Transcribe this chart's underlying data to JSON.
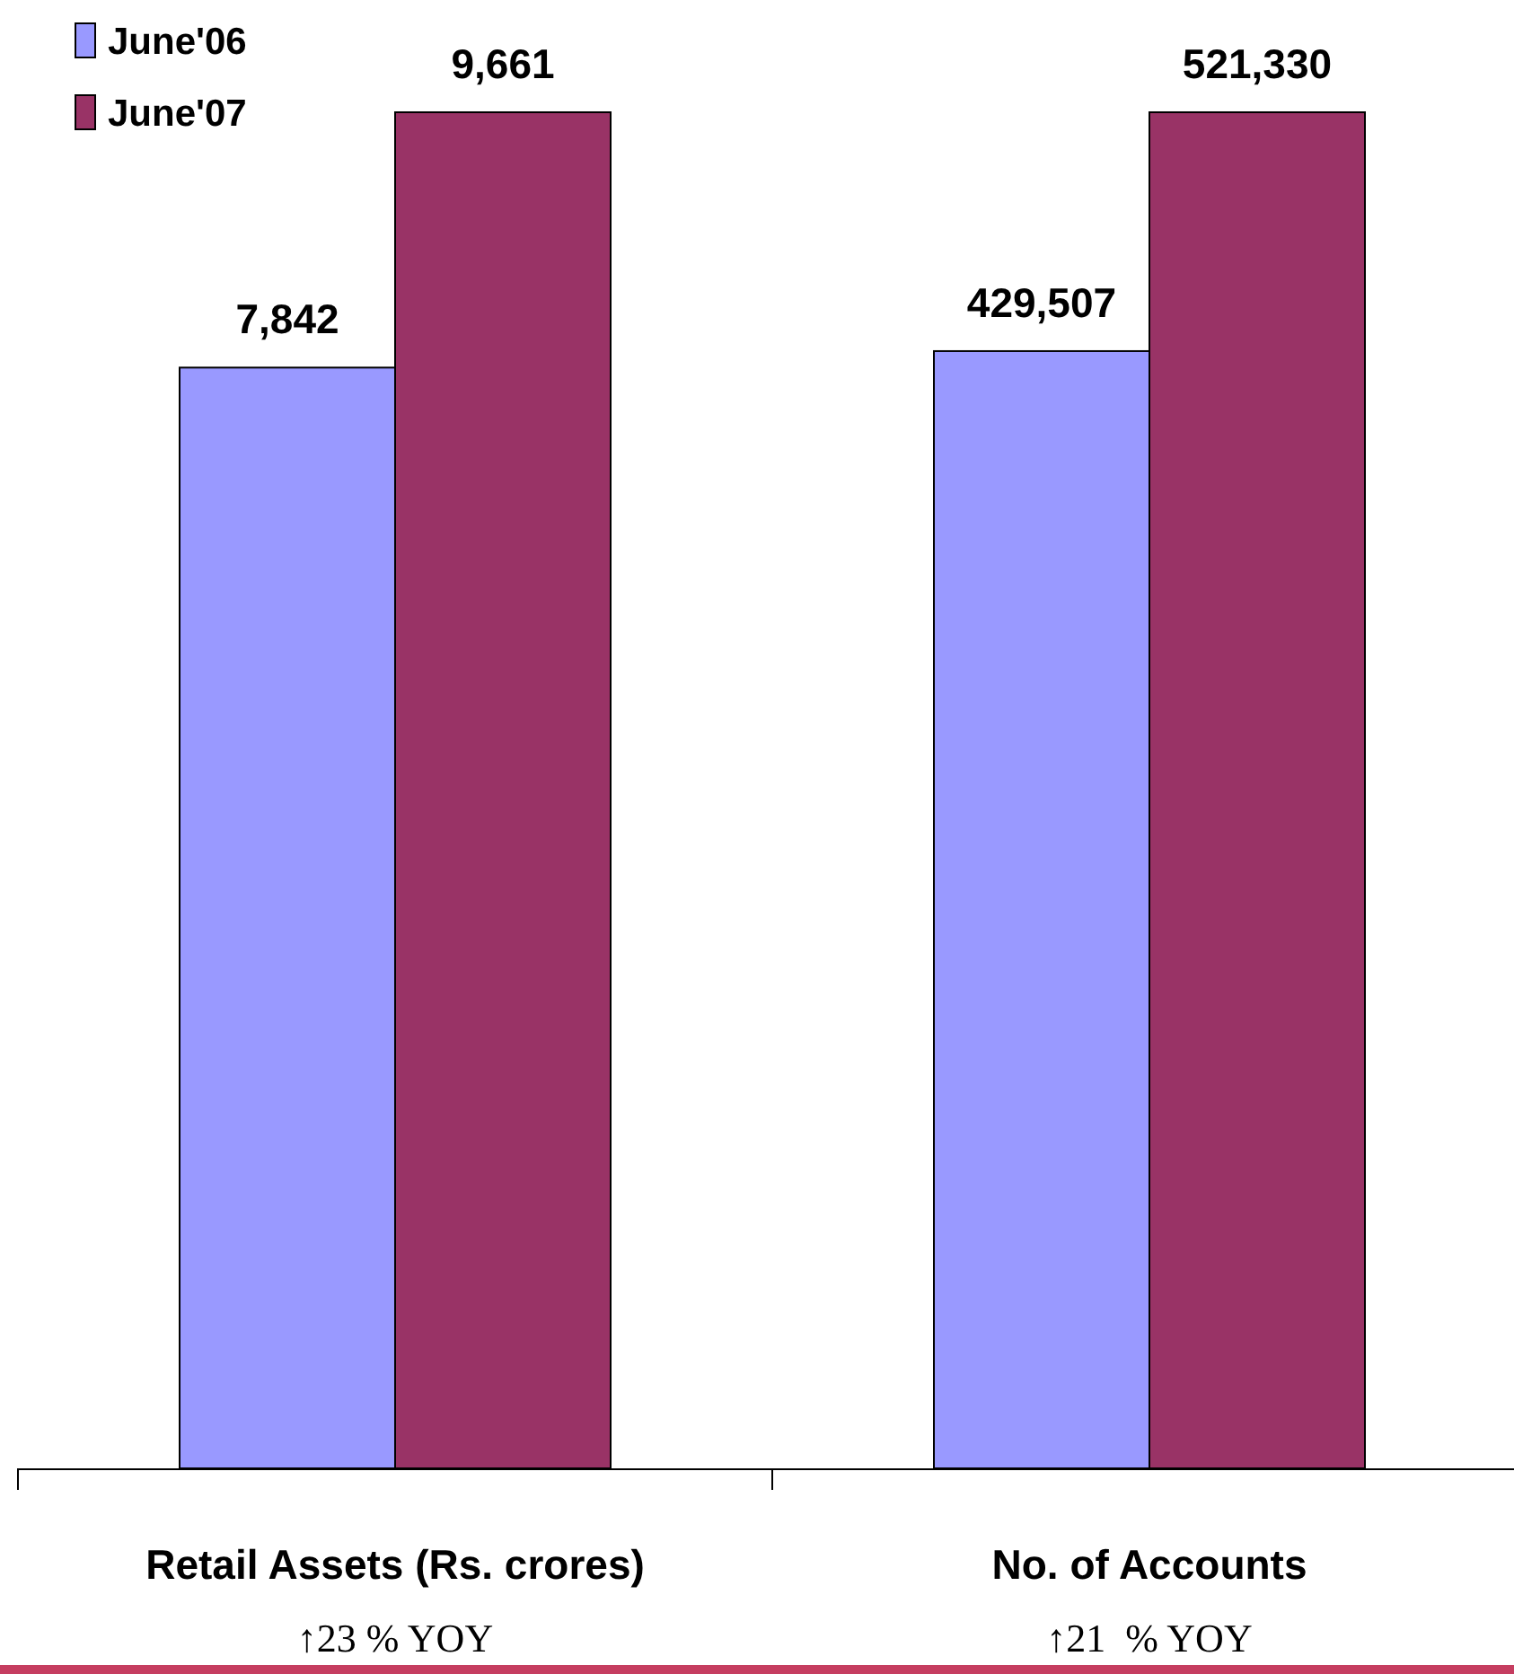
{
  "chart_data": {
    "type": "bar",
    "categories": [
      "Retail Assets (Rs. crores)",
      "No. of Accounts"
    ],
    "series": [
      {
        "name": "June'06",
        "color": "#9999ff",
        "values": [
          7842,
          null
        ],
        "value_labels": [
          "7,842",
          null
        ]
      },
      {
        "name": "June'07",
        "color": "#993366",
        "values": [
          9661,
          null
        ],
        "value_labels": [
          "9,661",
          null
        ]
      },
      {
        "color": "#9999ff",
        "values": [
          null,
          429507
        ],
        "value_labels": [
          null,
          "429,507"
        ],
        "axis": "y2"
      },
      {
        "color": "#993366",
        "values": [
          null,
          521330
        ],
        "value_labels": [
          null,
          "521,330"
        ],
        "axis": "y2"
      }
    ],
    "legend": "top left",
    "annotations": [
      "↑23 % YOY",
      "↑21  % YOY"
    ]
  }
}
